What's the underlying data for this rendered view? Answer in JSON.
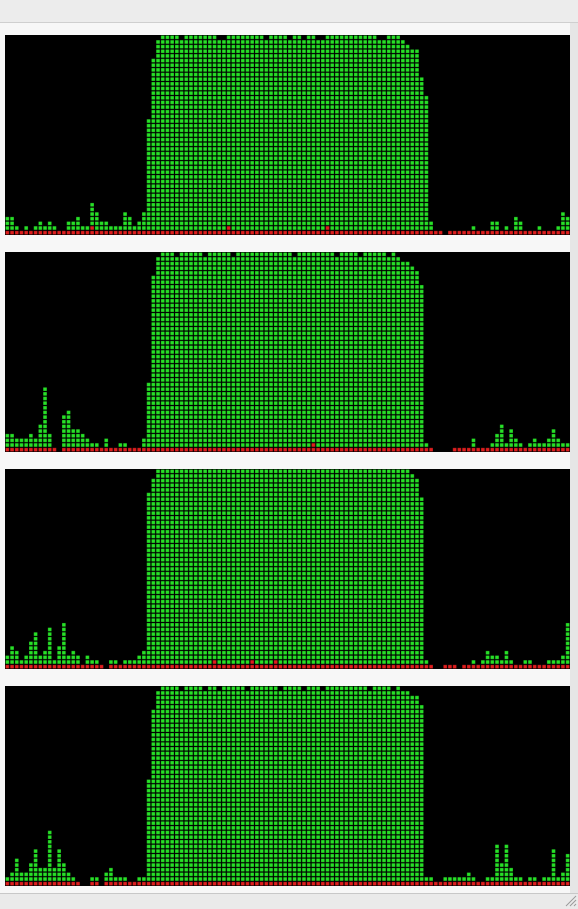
{
  "panels": [
    {
      "user": [
        3,
        3,
        1,
        0,
        1,
        0,
        1,
        2,
        1,
        2,
        1,
        0,
        0,
        2,
        2,
        3,
        1,
        1,
        5,
        4,
        2,
        2,
        1,
        1,
        1,
        4,
        3,
        1,
        2,
        4,
        24,
        37,
        41,
        42,
        42,
        42,
        42,
        41,
        42,
        42,
        42,
        42,
        42,
        42,
        42,
        41,
        41,
        41,
        42,
        42,
        42,
        42,
        42,
        42,
        42,
        41,
        42,
        42,
        42,
        42,
        41,
        42,
        42,
        41,
        42,
        42,
        41,
        41,
        41,
        42,
        42,
        42,
        42,
        42,
        42,
        42,
        42,
        42,
        42,
        41,
        41,
        42,
        42,
        42,
        41,
        40,
        39,
        39,
        33,
        29,
        2,
        0,
        0,
        0,
        0,
        0,
        0,
        0,
        0,
        1,
        0,
        0,
        0,
        2,
        2,
        0,
        1,
        0,
        3,
        2,
        0,
        0,
        0,
        1,
        0,
        0,
        0,
        1,
        4,
        3
      ],
      "system": [
        1,
        1,
        1,
        1,
        1,
        1,
        1,
        1,
        1,
        1,
        1,
        1,
        1,
        1,
        1,
        1,
        1,
        1,
        2,
        1,
        1,
        1,
        1,
        1,
        1,
        1,
        1,
        1,
        1,
        1,
        1,
        1,
        1,
        1,
        1,
        1,
        1,
        1,
        1,
        1,
        1,
        1,
        1,
        1,
        1,
        1,
        1,
        2,
        1,
        1,
        1,
        1,
        1,
        1,
        1,
        1,
        1,
        1,
        1,
        1,
        1,
        1,
        1,
        1,
        1,
        1,
        1,
        1,
        2,
        1,
        1,
        1,
        1,
        1,
        1,
        1,
        1,
        1,
        1,
        1,
        1,
        1,
        1,
        1,
        1,
        1,
        1,
        1,
        1,
        1,
        1,
        1,
        1,
        0,
        1,
        1,
        1,
        1,
        1,
        1,
        1,
        1,
        1,
        1,
        1,
        1,
        1,
        1,
        1,
        1,
        1,
        1,
        1,
        1,
        1,
        1,
        1,
        1,
        1,
        1
      ]
    },
    {
      "user": [
        3,
        3,
        2,
        2,
        2,
        3,
        2,
        5,
        13,
        3,
        0,
        0,
        7,
        8,
        4,
        4,
        3,
        2,
        1,
        1,
        0,
        2,
        0,
        0,
        1,
        1,
        0,
        0,
        0,
        2,
        14,
        37,
        41,
        42,
        42,
        42,
        41,
        42,
        42,
        42,
        42,
        42,
        41,
        42,
        42,
        42,
        42,
        42,
        41,
        42,
        42,
        42,
        42,
        42,
        42,
        42,
        42,
        42,
        42,
        42,
        42,
        41,
        42,
        42,
        42,
        41,
        42,
        42,
        42,
        42,
        41,
        42,
        42,
        42,
        42,
        41,
        42,
        42,
        42,
        42,
        42,
        41,
        42,
        41,
        40,
        40,
        39,
        38,
        35,
        1,
        0,
        0,
        0,
        0,
        0,
        0,
        0,
        0,
        0,
        2,
        0,
        0,
        0,
        1,
        3,
        5,
        1,
        4,
        2,
        1,
        0,
        1,
        2,
        1,
        1,
        2,
        4,
        2,
        1,
        1
      ],
      "system": [
        1,
        1,
        1,
        1,
        1,
        1,
        1,
        1,
        1,
        1,
        1,
        0,
        1,
        1,
        1,
        1,
        1,
        1,
        1,
        1,
        1,
        1,
        1,
        1,
        1,
        1,
        1,
        1,
        1,
        1,
        1,
        1,
        1,
        1,
        1,
        1,
        1,
        1,
        1,
        1,
        1,
        1,
        1,
        1,
        1,
        1,
        1,
        1,
        1,
        1,
        1,
        1,
        1,
        1,
        1,
        1,
        1,
        1,
        1,
        1,
        1,
        1,
        1,
        1,
        1,
        2,
        1,
        1,
        1,
        1,
        1,
        1,
        1,
        1,
        1,
        1,
        1,
        1,
        1,
        1,
        1,
        1,
        1,
        1,
        1,
        1,
        1,
        1,
        1,
        1,
        1,
        0,
        0,
        0,
        0,
        1,
        1,
        1,
        1,
        1,
        1,
        1,
        1,
        1,
        1,
        1,
        1,
        1,
        1,
        1,
        1,
        1,
        1,
        1,
        1,
        1,
        1,
        1,
        1,
        1
      ]
    },
    {
      "user": [
        2,
        4,
        3,
        1,
        2,
        5,
        7,
        2,
        3,
        8,
        1,
        4,
        9,
        2,
        3,
        2,
        0,
        2,
        1,
        1,
        0,
        0,
        1,
        1,
        0,
        1,
        1,
        1,
        2,
        3,
        37,
        40,
        42,
        42,
        42,
        42,
        42,
        42,
        42,
        42,
        42,
        42,
        42,
        42,
        41,
        42,
        42,
        42,
        42,
        42,
        42,
        42,
        41,
        42,
        42,
        42,
        42,
        41,
        42,
        42,
        42,
        42,
        42,
        42,
        42,
        42,
        42,
        42,
        42,
        42,
        42,
        42,
        42,
        42,
        42,
        42,
        42,
        42,
        42,
        42,
        42,
        42,
        42,
        42,
        42,
        42,
        41,
        40,
        36,
        1,
        0,
        0,
        0,
        0,
        0,
        0,
        0,
        0,
        0,
        1,
        0,
        1,
        3,
        2,
        2,
        1,
        3,
        1,
        0,
        0,
        1,
        1,
        0,
        0,
        0,
        1,
        1,
        1,
        2,
        9
      ],
      "system": [
        1,
        1,
        1,
        1,
        1,
        1,
        1,
        1,
        1,
        1,
        1,
        1,
        1,
        1,
        1,
        1,
        1,
        1,
        1,
        1,
        1,
        0,
        1,
        1,
        1,
        1,
        1,
        1,
        1,
        1,
        1,
        1,
        1,
        1,
        1,
        1,
        1,
        1,
        1,
        1,
        1,
        1,
        1,
        1,
        2,
        1,
        1,
        1,
        1,
        1,
        1,
        1,
        2,
        1,
        1,
        1,
        1,
        2,
        1,
        1,
        1,
        1,
        1,
        1,
        1,
        1,
        1,
        1,
        1,
        1,
        1,
        1,
        1,
        1,
        1,
        1,
        1,
        1,
        1,
        1,
        1,
        1,
        1,
        1,
        1,
        1,
        1,
        1,
        1,
        1,
        1,
        0,
        0,
        1,
        1,
        1,
        0,
        1,
        1,
        1,
        1,
        1,
        1,
        1,
        1,
        1,
        1,
        1,
        1,
        1,
        1,
        1,
        1,
        1,
        1,
        1,
        1,
        1,
        1,
        1
      ]
    },
    {
      "user": [
        1,
        2,
        5,
        2,
        2,
        4,
        7,
        3,
        3,
        11,
        3,
        7,
        4,
        2,
        1,
        0,
        0,
        0,
        1,
        1,
        0,
        2,
        3,
        1,
        1,
        1,
        0,
        0,
        1,
        1,
        22,
        37,
        41,
        42,
        42,
        42,
        42,
        41,
        42,
        42,
        42,
        42,
        41,
        42,
        42,
        41,
        42,
        42,
        42,
        42,
        42,
        41,
        42,
        42,
        42,
        42,
        42,
        42,
        41,
        42,
        42,
        42,
        42,
        41,
        42,
        42,
        42,
        41,
        42,
        42,
        42,
        42,
        42,
        42,
        42,
        42,
        42,
        41,
        42,
        42,
        42,
        42,
        41,
        42,
        41,
        41,
        40,
        40,
        38,
        1,
        1,
        0,
        0,
        1,
        1,
        1,
        1,
        1,
        2,
        1,
        0,
        0,
        1,
        1,
        8,
        4,
        8,
        3,
        1,
        1,
        0,
        1,
        1,
        0,
        1,
        1,
        7,
        1,
        2,
        6
      ],
      "system": [
        1,
        1,
        1,
        1,
        1,
        1,
        1,
        1,
        1,
        1,
        1,
        1,
        1,
        1,
        1,
        1,
        0,
        0,
        1,
        1,
        0,
        1,
        1,
        1,
        1,
        1,
        1,
        1,
        1,
        1,
        1,
        1,
        1,
        1,
        1,
        1,
        1,
        1,
        1,
        1,
        1,
        1,
        1,
        1,
        1,
        1,
        1,
        1,
        1,
        1,
        1,
        1,
        1,
        1,
        1,
        1,
        1,
        1,
        1,
        1,
        1,
        1,
        1,
        1,
        1,
        1,
        1,
        1,
        1,
        1,
        1,
        1,
        1,
        1,
        1,
        1,
        1,
        1,
        1,
        1,
        1,
        1,
        1,
        1,
        1,
        1,
        1,
        1,
        1,
        1,
        1,
        1,
        1,
        1,
        1,
        1,
        1,
        1,
        1,
        1,
        1,
        1,
        1,
        1,
        1,
        1,
        1,
        1,
        1,
        1,
        1,
        1,
        1,
        1,
        1,
        1,
        1,
        1,
        1,
        1
      ]
    }
  ]
}
